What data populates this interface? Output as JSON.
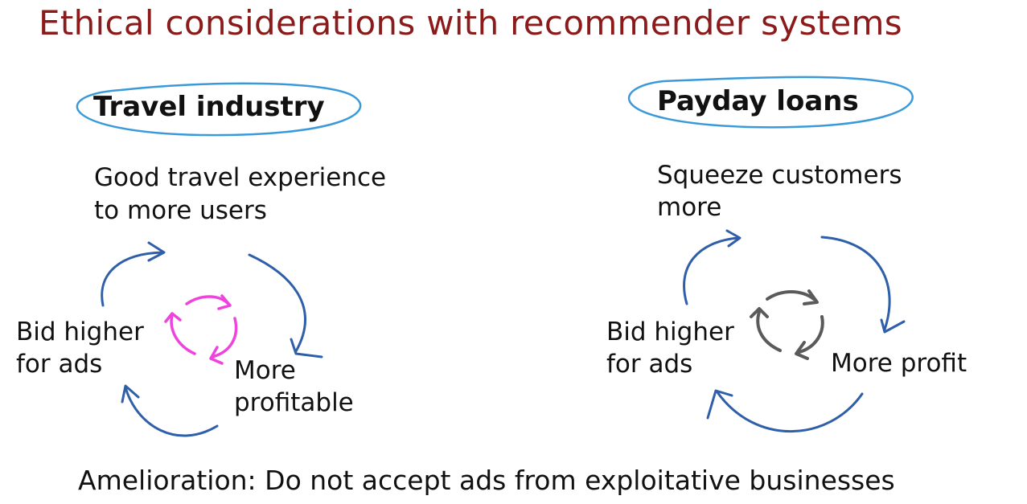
{
  "title": "Ethical considerations with recommender systems",
  "colors": {
    "title": "#8b1a1a",
    "loop_arrow": "#2f5fa8",
    "ellipse": "#3a9ad9",
    "cycle_pink": "#ee44dd",
    "cycle_gray": "#5a5a5a"
  },
  "left": {
    "heading": "Travel industry",
    "top_line1": "Good travel experience",
    "top_line2": "to more users",
    "right_line1": "More",
    "right_line2": "profitable",
    "left_line1": "Bid higher",
    "left_line2": "for ads",
    "cycle_icon": "refresh-cycle-icon"
  },
  "right": {
    "heading": "Payday loans",
    "top_line1": "Squeeze customers",
    "top_line2": "more",
    "right_line1": "More profit",
    "left_line1": "Bid higher",
    "left_line2": "for ads",
    "cycle_icon": "refresh-cycle-icon"
  },
  "footer": "Amelioration: Do not accept ads from exploitative businesses"
}
